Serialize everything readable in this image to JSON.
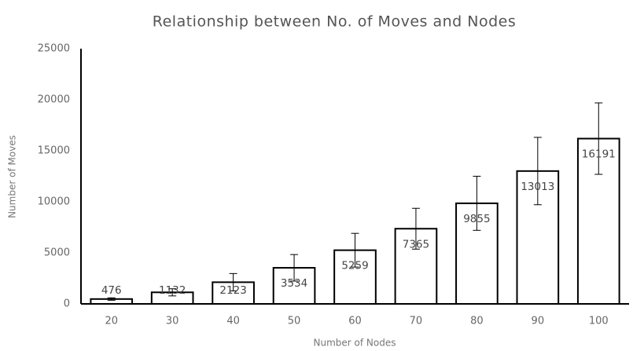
{
  "chart_data": {
    "type": "bar",
    "title": "Relationship between No. of Moves and Nodes",
    "x_label": "Number of Nodes",
    "y_label": "Number of Moves",
    "categories": [
      "20",
      "30",
      "40",
      "50",
      "60",
      "70",
      "80",
      "90",
      "100"
    ],
    "values": [
      476,
      1132,
      2123,
      3534,
      5259,
      7365,
      9855,
      13013,
      16191
    ],
    "errors": [
      120,
      350,
      850,
      1300,
      1650,
      2000,
      2650,
      3300,
      3500
    ],
    "color": "#ffffff",
    "edge_color": "#000000",
    "ylim": [
      0,
      25000
    ],
    "yticks": [
      0,
      5000,
      10000,
      15000,
      20000,
      25000
    ],
    "grid": false
  }
}
